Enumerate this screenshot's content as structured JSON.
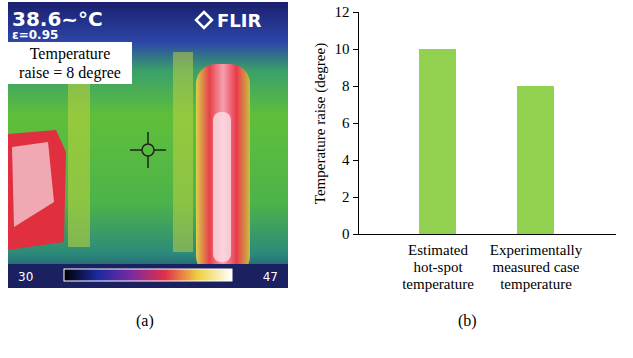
{
  "chart_data": {
    "type": "bar",
    "categories": [
      "Estimated hot-spot temperature",
      "Experimentally measured case temperature"
    ],
    "values": [
      10,
      8
    ],
    "color": "#92d050",
    "ylabel": "Temperature raise (degree)",
    "ylim": [
      0,
      12
    ],
    "yticks": [
      0,
      2,
      4,
      6,
      8,
      10,
      12
    ],
    "grid": false
  },
  "thermal_image": {
    "reading": "38.6~°C",
    "emissivity": "ε=0.95",
    "brand": "FLIR",
    "annotation": "Temperature raise = 8 degree",
    "scale_min": 30,
    "scale_max": 47
  },
  "panel_labels": [
    "(a)",
    "(b)"
  ]
}
